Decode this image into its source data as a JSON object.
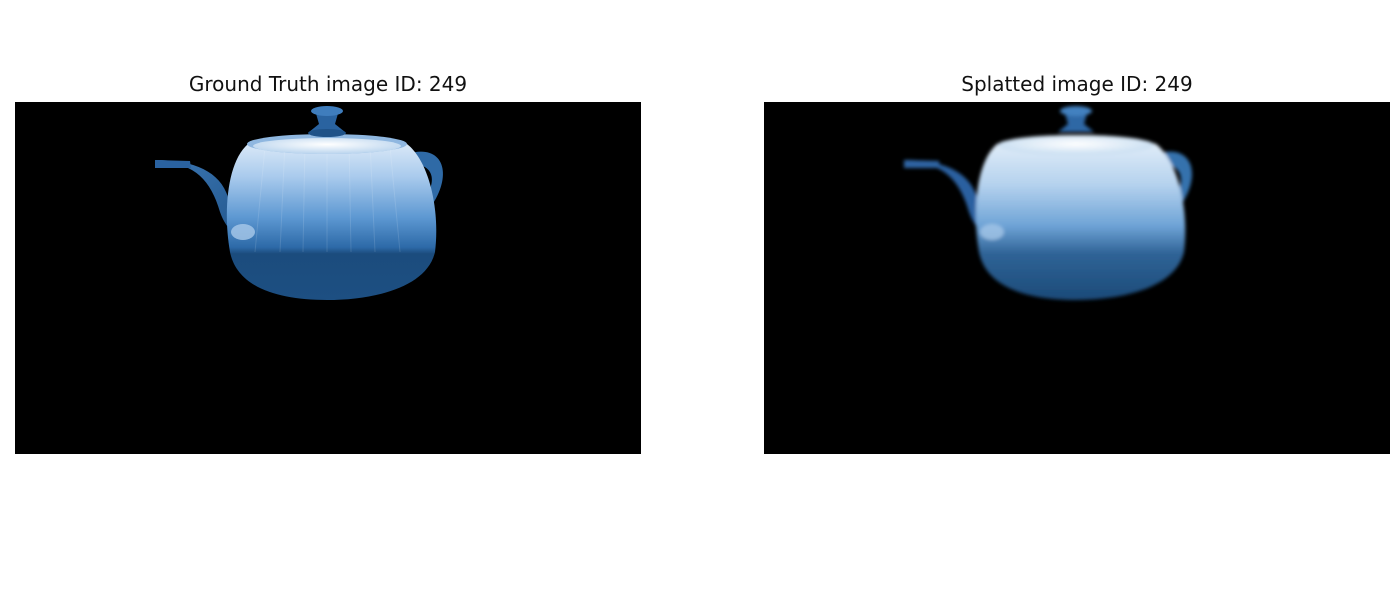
{
  "figure": {
    "panels": [
      {
        "title": "Ground Truth image ID: 249"
      },
      {
        "title": "Splatted image ID: 249"
      }
    ]
  },
  "colors": {
    "background": "#000000",
    "teapot_dark": "#1d4f7e",
    "teapot_mid": "#3e7fbf",
    "teapot_light": "#cfe3f7"
  }
}
